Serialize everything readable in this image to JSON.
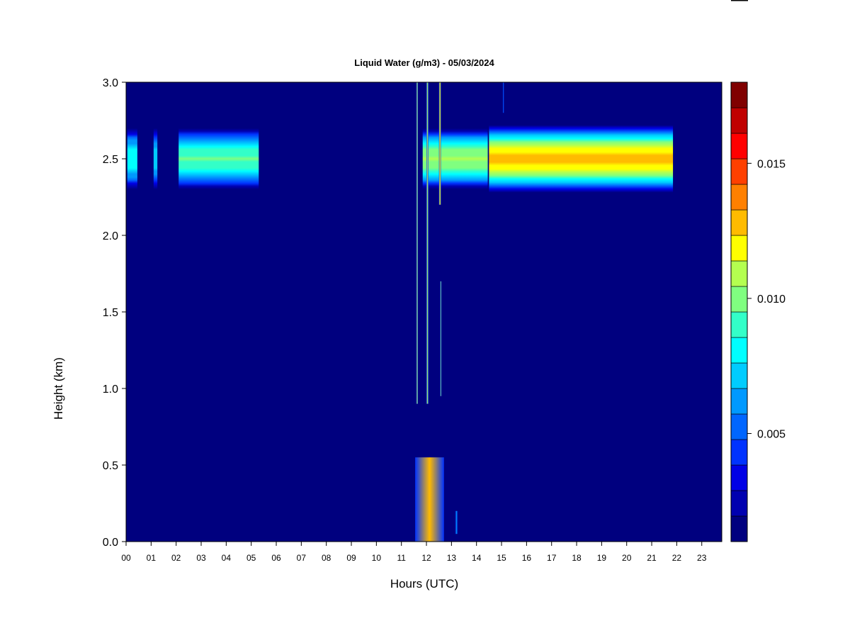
{
  "chart_data": {
    "type": "heatmap",
    "title": "Liquid Water (g/m3) - 05/03/2024",
    "xlabel": "Hours (UTC)",
    "ylabel": "Height (km)",
    "xlim": [
      0,
      24
    ],
    "ylim": [
      0,
      3.0
    ],
    "x_ticks": [
      "00",
      "01",
      "02",
      "03",
      "04",
      "05",
      "06",
      "07",
      "08",
      "09",
      "10",
      "11",
      "12",
      "13",
      "14",
      "15",
      "16",
      "17",
      "18",
      "19",
      "20",
      "21",
      "22",
      "23"
    ],
    "y_ticks": [
      "0.0",
      "0.5",
      "1.0",
      "1.5",
      "2.0",
      "2.5",
      "3.0"
    ],
    "colorbar": {
      "range": [
        0.001,
        0.018
      ],
      "levels": 17,
      "ticks": [
        "0.005",
        "0.010",
        "0.015"
      ],
      "tick_values": [
        0.005,
        0.01,
        0.015
      ],
      "colors": [
        "#00007f",
        "#0000b0",
        "#0000e6",
        "#0033ff",
        "#0066ff",
        "#0099ff",
        "#00ccff",
        "#00ffff",
        "#33ffc8",
        "#80ff80",
        "#b4ff50",
        "#ffff00",
        "#ffbb00",
        "#ff8000",
        "#ff4000",
        "#ff0000",
        "#c00000",
        "#800000"
      ],
      "background": "#00007f"
    },
    "features": [
      {
        "name": "cloud layer",
        "x": [
          0.05,
          0.45
        ],
        "y_center": 2.5,
        "y_half": 0.2,
        "peak": 0.0085
      },
      {
        "name": "cloud layer",
        "x": [
          1.1,
          1.25
        ],
        "y_center": 2.5,
        "y_half": 0.2,
        "peak": 0.0075
      },
      {
        "name": "cloud layer",
        "x": [
          2.1,
          5.3
        ],
        "y_center": 2.5,
        "y_half": 0.2,
        "peak": 0.0095
      },
      {
        "name": "cloud layer",
        "x": [
          11.85,
          14.45
        ],
        "y_center": 2.5,
        "y_half": 0.2,
        "peak": 0.0105
      },
      {
        "name": "cloud layer",
        "x": [
          14.5,
          21.85
        ],
        "y_center": 2.5,
        "y_half": 0.22,
        "peak": 0.0125
      },
      {
        "name": "streak",
        "x": [
          11.6,
          11.66
        ],
        "y_range": [
          0.9,
          3.0
        ],
        "peak": 0.011
      },
      {
        "name": "streak",
        "x": [
          12.0,
          12.08
        ],
        "y_range": [
          0.9,
          3.0
        ],
        "peak": 0.011
      },
      {
        "name": "streak",
        "x": [
          12.5,
          12.58
        ],
        "y_range": [
          2.2,
          3.0
        ],
        "peak": 0.012
      },
      {
        "name": "streak",
        "x": [
          12.55,
          12.6
        ],
        "y_range": [
          0.95,
          1.7
        ],
        "peak": 0.01
      },
      {
        "name": "streak",
        "x": [
          15.05,
          15.1
        ],
        "y_range": [
          2.8,
          3.0
        ],
        "peak": 0.005
      },
      {
        "name": "surface drizzle",
        "x": [
          11.55,
          12.7
        ],
        "y_range": [
          0.0,
          0.55
        ],
        "peak": 0.013
      },
      {
        "name": "surface drizzle",
        "x": [
          13.15,
          13.25
        ],
        "y_range": [
          0.05,
          0.2
        ],
        "peak": 0.006
      }
    ]
  }
}
